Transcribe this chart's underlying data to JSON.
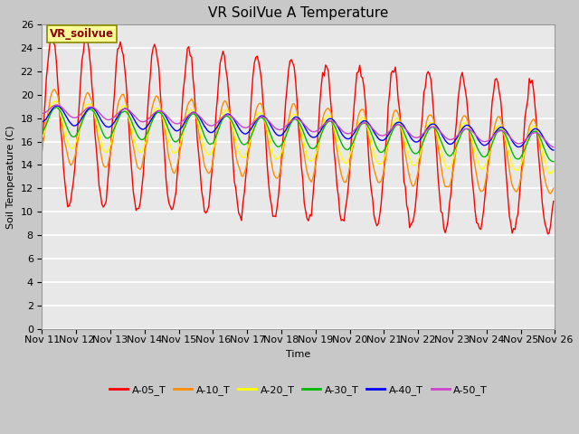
{
  "title": "VR SoilVue A Temperature",
  "xlabel": "Time",
  "ylabel": "Soil Temperature (C)",
  "ylim": [
    0,
    26
  ],
  "yticks": [
    0,
    2,
    4,
    6,
    8,
    10,
    12,
    14,
    16,
    18,
    20,
    22,
    24,
    26
  ],
  "legend_label": "VR_soilvue",
  "series_names": [
    "A-05_T",
    "A-10_T",
    "A-20_T",
    "A-30_T",
    "A-40_T",
    "A-50_T"
  ],
  "series_colors": [
    "#FF0000",
    "#FF8C00",
    "#FFFF00",
    "#00BB00",
    "#0000FF",
    "#CC44CC"
  ],
  "fig_facecolor": "#C8C8C8",
  "plot_facecolor": "#E8E8E8",
  "title_fontsize": 11,
  "axis_fontsize": 8,
  "tick_fontsize": 8,
  "legend_box_facecolor": "#FFFF99",
  "legend_text_color": "#8B0000",
  "legend_box_edgecolor": "#888800",
  "grid_color": "#FFFFFF",
  "figsize": [
    6.4,
    4.8
  ],
  "dpi": 100
}
